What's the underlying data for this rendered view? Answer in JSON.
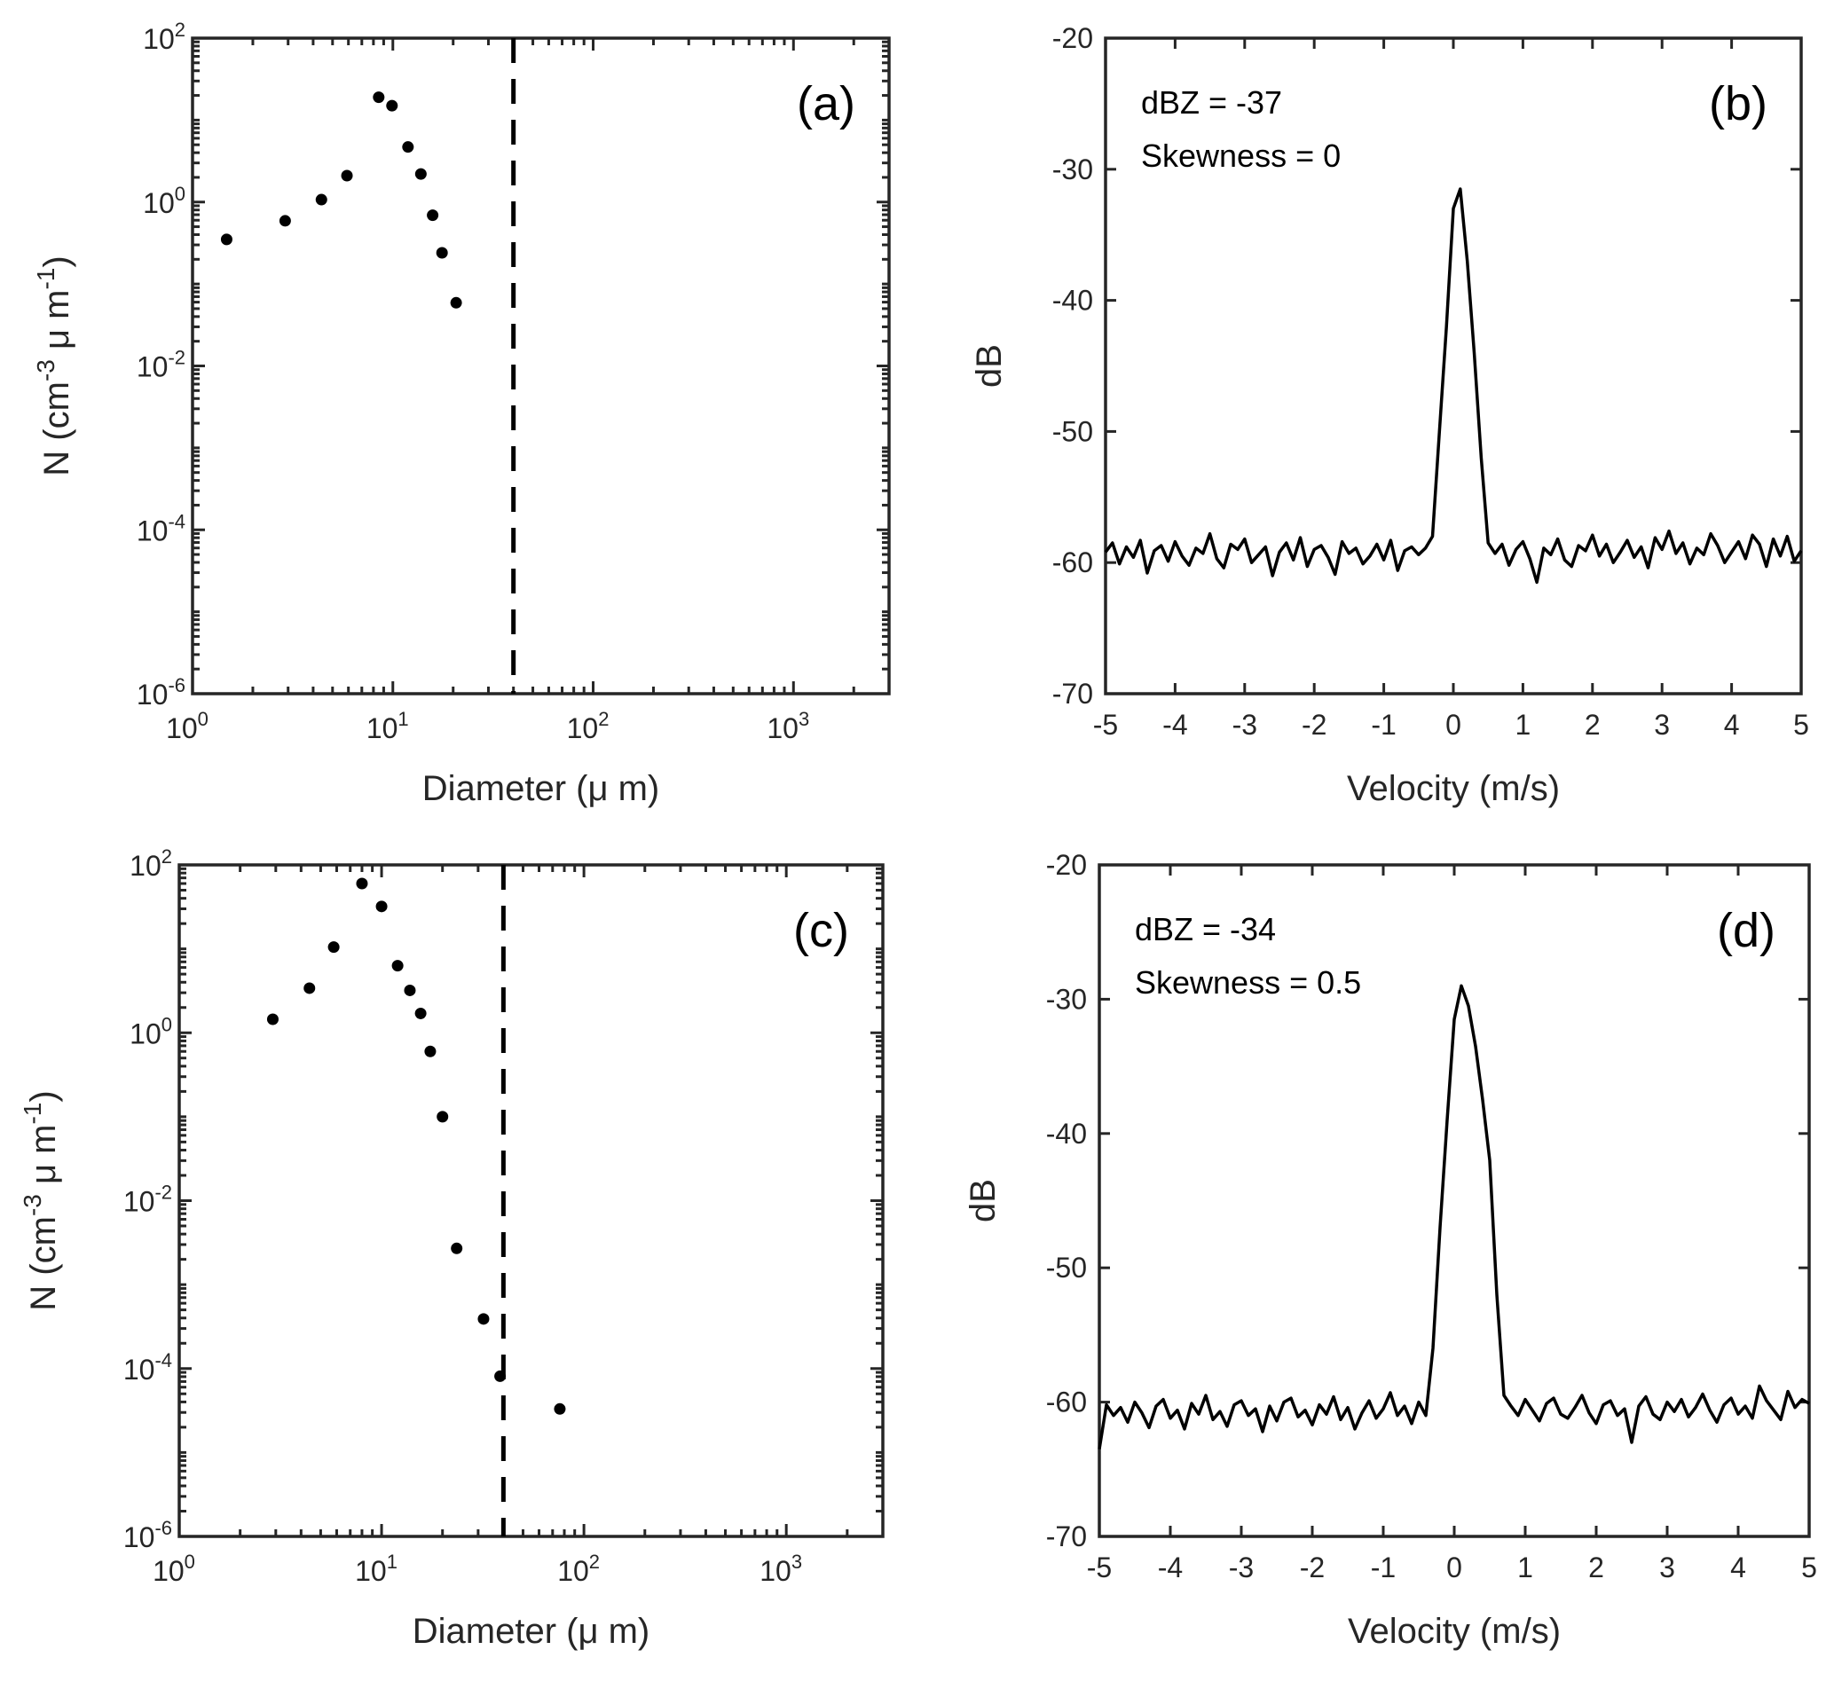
{
  "chart_data": [
    {
      "type": "scatter",
      "panel_label": "(a)",
      "xlabel": "Diameter (μ m)",
      "ylabel_parts": [
        {
          "t": "N (cm"
        },
        {
          "t": "-3",
          "sup": true
        },
        {
          "t": " μ m"
        },
        {
          "t": "-1",
          "sup": true
        },
        {
          "t": ")"
        }
      ],
      "xscale": "log",
      "yscale": "log",
      "xlim": [
        1,
        3000
      ],
      "ylim": [
        1e-06,
        100
      ],
      "xticks": [
        {
          "base": "10",
          "exp": "0",
          "v": 1
        },
        {
          "base": "10",
          "exp": "1",
          "v": 10
        },
        {
          "base": "10",
          "exp": "2",
          "v": 100
        },
        {
          "base": "10",
          "exp": "3",
          "v": 1000
        }
      ],
      "yticks": [
        {
          "base": "10",
          "exp": "-6",
          "v": 1e-06
        },
        {
          "base": "10",
          "exp": "-4",
          "v": 0.0001
        },
        {
          "base": "10",
          "exp": "-2",
          "v": 0.01
        },
        {
          "base": "10",
          "exp": "0",
          "v": 1
        },
        {
          "base": "10",
          "exp": "2",
          "v": 100
        }
      ],
      "x": [
        1.48,
        2.9,
        4.4,
        5.9,
        8.5,
        9.9,
        11.9,
        13.8,
        15.8,
        17.6,
        20.7
      ],
      "y": [
        0.35,
        0.59,
        1.07,
        2.1,
        19,
        15,
        4.7,
        2.2,
        0.69,
        0.24,
        0.059
      ],
      "vline": 40,
      "color": "#000000"
    },
    {
      "type": "line",
      "panel_label": "(b)",
      "annotations": [
        "dBZ = -37",
        "Skewness = 0"
      ],
      "xlabel": "Velocity (m/s)",
      "ylabel": "dB",
      "xlim": [
        -5,
        5
      ],
      "ylim": [
        -70,
        -20
      ],
      "xticks": [
        "-5",
        "-4",
        "-3",
        "-2",
        "-1",
        "0",
        "1",
        "2",
        "3",
        "4",
        "5"
      ],
      "yticks": [
        "-70",
        "-60",
        "-50",
        "-40",
        "-30",
        "-20"
      ],
      "x_start": -5,
      "x_step": 0.1,
      "y": [
        -59.2,
        -58.5,
        -60.1,
        -58.8,
        -59.6,
        -58.3,
        -60.8,
        -59.1,
        -58.7,
        -59.9,
        -58.4,
        -59.5,
        -60.2,
        -58.9,
        -59.3,
        -57.8,
        -59.7,
        -60.4,
        -58.6,
        -59.0,
        -58.2,
        -60.0,
        -59.4,
        -58.8,
        -61.0,
        -59.2,
        -58.5,
        -59.8,
        -58.1,
        -60.3,
        -59.0,
        -58.7,
        -59.6,
        -60.9,
        -58.4,
        -59.3,
        -58.9,
        -60.1,
        -59.5,
        -58.6,
        -59.8,
        -58.3,
        -60.6,
        -59.1,
        -58.8,
        -59.4,
        -58.9,
        -58.0,
        -50.0,
        -42.0,
        -33.0,
        -31.5,
        -37.0,
        -44.0,
        -52.0,
        -58.5,
        -59.3,
        -58.6,
        -60.2,
        -59.0,
        -58.4,
        -59.7,
        -61.5,
        -58.9,
        -59.4,
        -58.2,
        -59.8,
        -60.3,
        -58.7,
        -59.1,
        -57.9,
        -59.5,
        -58.6,
        -60.0,
        -59.2,
        -58.3,
        -59.6,
        -58.8,
        -60.4,
        -58.1,
        -59.0,
        -57.6,
        -59.3,
        -58.5,
        -60.1,
        -58.9,
        -59.4,
        -57.8,
        -58.7,
        -60.0,
        -59.2,
        -58.4,
        -59.7,
        -57.9,
        -58.6,
        -60.3,
        -58.2,
        -59.5,
        -58.0,
        -59.9,
        -59.1
      ],
      "color": "#000000"
    },
    {
      "type": "scatter",
      "panel_label": "(c)",
      "xlabel": "Diameter (μ m)",
      "ylabel_parts": [
        {
          "t": "N (cm"
        },
        {
          "t": "-3",
          "sup": true
        },
        {
          "t": " μ m"
        },
        {
          "t": "-1",
          "sup": true
        },
        {
          "t": ")"
        }
      ],
      "xscale": "log",
      "yscale": "log",
      "xlim": [
        1,
        3000
      ],
      "ylim": [
        1e-06,
        100
      ],
      "xticks": [
        {
          "base": "10",
          "exp": "0",
          "v": 1
        },
        {
          "base": "10",
          "exp": "1",
          "v": 10
        },
        {
          "base": "10",
          "exp": "2",
          "v": 100
        },
        {
          "base": "10",
          "exp": "3",
          "v": 1000
        }
      ],
      "yticks": [
        {
          "base": "10",
          "exp": "-6",
          "v": 1e-06
        },
        {
          "base": "10",
          "exp": "-4",
          "v": 0.0001
        },
        {
          "base": "10",
          "exp": "-2",
          "v": 0.01
        },
        {
          "base": "10",
          "exp": "0",
          "v": 1
        },
        {
          "base": "10",
          "exp": "2",
          "v": 100
        }
      ],
      "x": [
        2.9,
        4.4,
        5.8,
        8.0,
        10,
        12,
        13.8,
        15.6,
        17.4,
        20,
        23.5,
        31.9,
        38.5,
        76
      ],
      "y": [
        1.45,
        3.4,
        10.5,
        60,
        32,
        6.3,
        3.2,
        1.7,
        0.6,
        0.1,
        0.0027,
        0.00039,
        8.1e-05,
        3.3e-05
      ],
      "vline": 40,
      "color": "#000000"
    },
    {
      "type": "line",
      "panel_label": "(d)",
      "annotations": [
        "dBZ = -34",
        "Skewness = 0.5"
      ],
      "xlabel": "Velocity (m/s)",
      "ylabel": "dB",
      "xlim": [
        -5,
        5
      ],
      "ylim": [
        -70,
        -20
      ],
      "xticks": [
        "-5",
        "-4",
        "-3",
        "-2",
        "-1",
        "0",
        "1",
        "2",
        "3",
        "4",
        "5"
      ],
      "yticks": [
        "-70",
        "-60",
        "-50",
        "-40",
        "-30",
        "-20"
      ],
      "x_start": -5,
      "x_step": 0.1,
      "y": [
        -63.5,
        -60.2,
        -61.0,
        -60.4,
        -61.5,
        -60.0,
        -60.8,
        -61.9,
        -60.3,
        -59.8,
        -61.2,
        -60.6,
        -62.0,
        -60.1,
        -60.9,
        -59.5,
        -61.3,
        -60.7,
        -61.8,
        -60.2,
        -59.9,
        -61.0,
        -60.5,
        -62.2,
        -60.3,
        -61.4,
        -60.0,
        -59.7,
        -61.1,
        -60.6,
        -61.7,
        -60.2,
        -60.9,
        -59.6,
        -61.3,
        -60.4,
        -62.0,
        -60.8,
        -59.9,
        -61.2,
        -60.5,
        -59.3,
        -61.0,
        -60.3,
        -61.6,
        -60.0,
        -61.0,
        -56.0,
        -47.0,
        -39.0,
        -31.5,
        -29.0,
        -30.5,
        -33.5,
        -37.5,
        -42.0,
        -52.0,
        -59.5,
        -60.3,
        -61.0,
        -59.8,
        -60.6,
        -61.4,
        -60.1,
        -59.7,
        -60.9,
        -61.2,
        -60.4,
        -59.5,
        -60.8,
        -61.6,
        -60.2,
        -59.9,
        -61.0,
        -60.5,
        -63.0,
        -60.3,
        -59.6,
        -60.9,
        -61.3,
        -60.0,
        -60.7,
        -59.8,
        -61.1,
        -60.4,
        -59.4,
        -60.6,
        -61.5,
        -60.2,
        -59.7,
        -60.9,
        -60.3,
        -61.2,
        -58.8,
        -59.9,
        -60.6,
        -61.3,
        -59.2,
        -60.4,
        -59.8,
        -60.1
      ],
      "color": "#000000"
    }
  ]
}
